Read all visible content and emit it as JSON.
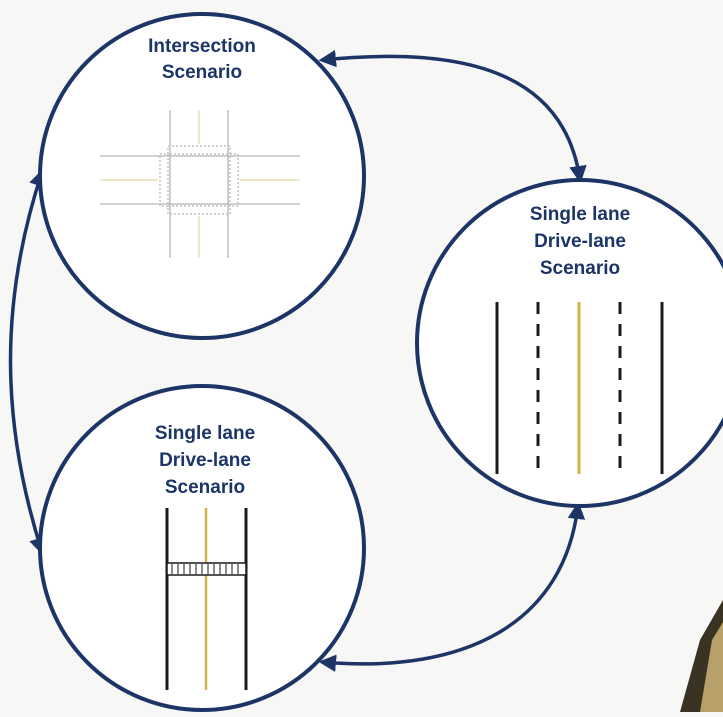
{
  "colors": {
    "navy": "#1c3466",
    "road_gray": "#b8b8b8",
    "road_dark": "#1a1a1a",
    "center_yellow": "#d2b24a",
    "background": "#f7f7f5"
  },
  "nodes": [
    {
      "id": "intersection",
      "title_lines": [
        "Intersection",
        "Scenario"
      ]
    },
    {
      "id": "drive-lane-right",
      "title_lines": [
        "Single lane",
        "Drive-lane",
        "Scenario"
      ]
    },
    {
      "id": "drive-lane-left",
      "title_lines": [
        "Single lane",
        "Drive-lane",
        "Scenario"
      ]
    }
  ],
  "edges": [
    {
      "from": "intersection",
      "to": "drive-lane-right",
      "bidirectional": true
    },
    {
      "from": "drive-lane-right",
      "to": "drive-lane-left",
      "bidirectional": true
    },
    {
      "from": "drive-lane-left",
      "to": "intersection",
      "bidirectional": true
    }
  ]
}
